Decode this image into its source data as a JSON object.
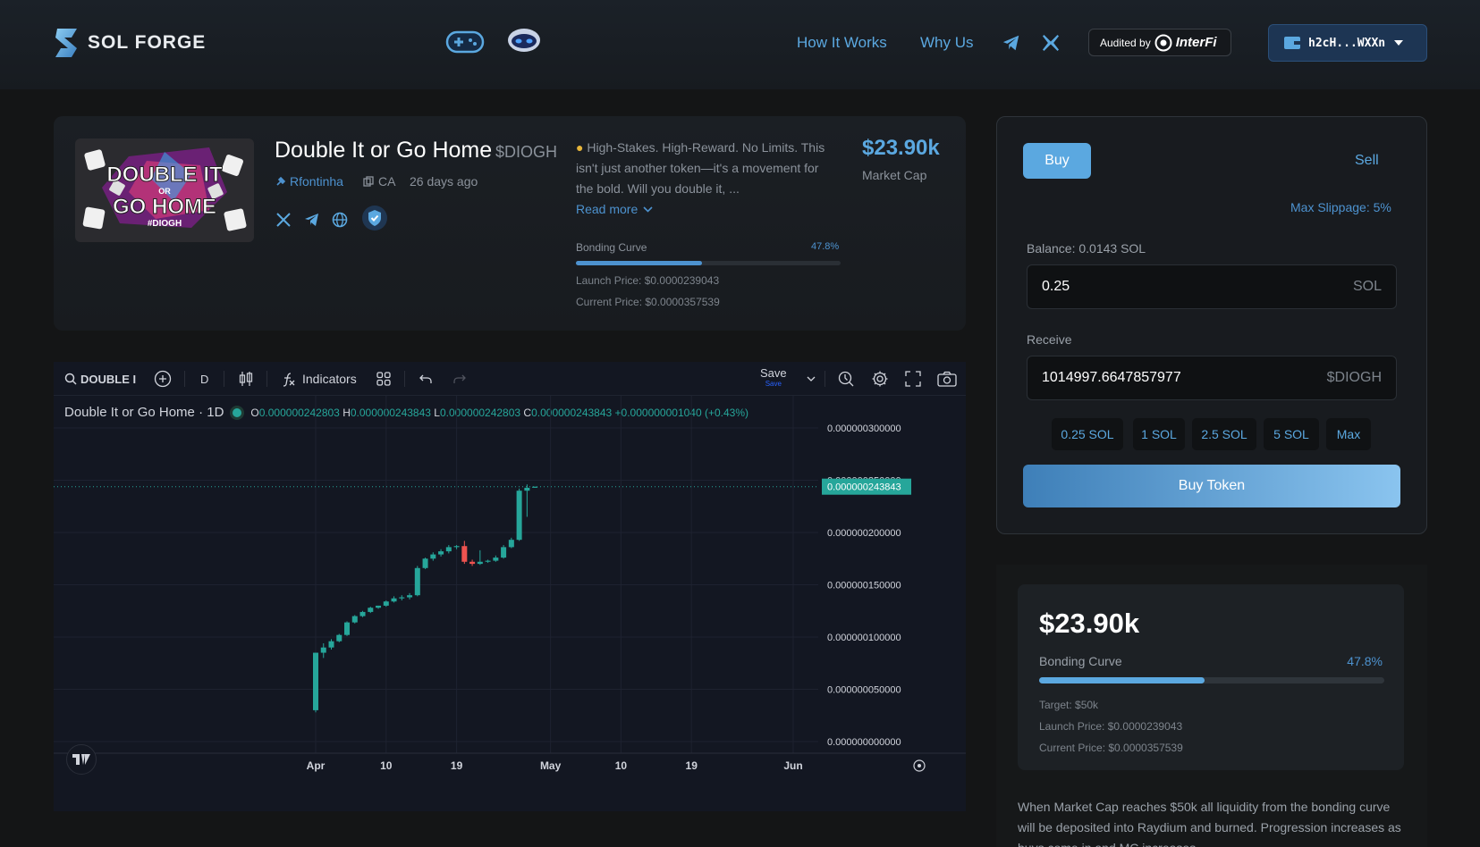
{
  "header": {
    "logo_text": "SOL FORGE",
    "nav": [
      "How It Works",
      "Why Us"
    ],
    "audit_prefix": "Audited by",
    "audit_brand": "InterFi",
    "wallet": "h2cH...WXXn"
  },
  "token": {
    "name": "Double It or Go Home",
    "ticker": "$DIOGH",
    "image_text": [
      "DOUBLE IT",
      "OR",
      "GO HOME",
      "#DIOGH"
    ],
    "creator": "Rfontinha",
    "ca_label": "CA",
    "age": "26 days ago",
    "description": "High-Stakes. High-Reward. No Limits. This isn't just another token—it's a movement for the bold. Will you double it, ...",
    "read_more": "Read more",
    "market_cap": "$23.90k",
    "market_cap_label": "Market Cap",
    "bonding_label": "Bonding Curve",
    "bonding_pct": "47.8%",
    "bonding_progress": 47.8,
    "launch_price": "Launch Price: $0.0000239043",
    "current_price": "Current Price: $0.0000357539"
  },
  "chart_toolbar": {
    "symbol": "DOUBLE I",
    "interval": "D",
    "indicators": "Indicators",
    "save": "Save",
    "save_sub": "Save"
  },
  "chart_data": {
    "type": "candlestick",
    "title": "Double It or Go Home · 1D",
    "ohlc_readout": {
      "o_label": "O",
      "o": "0.000000242803",
      "h_label": "H",
      "h": "0.000000243843",
      "l_label": "L",
      "l": "0.000000242803",
      "c_label": "C",
      "c": "0.000000243843",
      "change": "+0.000000001040 (+0.43%)"
    },
    "ylim": [
      0,
      3e-07
    ],
    "y_ticks": [
      "0.000000300000",
      "0.000000250000",
      "0.000000200000",
      "0.000000150000",
      "0.000000100000",
      "0.000000050000",
      "0.000000000000"
    ],
    "y_tick_values": [
      3e-07,
      2.5e-07,
      2e-07,
      1.5e-07,
      1e-07,
      5e-08,
      0
    ],
    "x_ticks": [
      "Apr",
      "10",
      "19",
      "May",
      "10",
      "19",
      "Jun"
    ],
    "x_tick_days": [
      0,
      9,
      18,
      30,
      39,
      48,
      61
    ],
    "last_price_label": "0.000000243843",
    "last_price": 2.43843e-07,
    "candles": [
      {
        "d": 0,
        "o": 3e-08,
        "h": 8.5e-08,
        "l": 2.8e-08,
        "c": 8.5e-08
      },
      {
        "d": 1,
        "o": 8.5e-08,
        "h": 9.4e-08,
        "l": 8e-08,
        "c": 9e-08
      },
      {
        "d": 2,
        "o": 9e-08,
        "h": 9.8e-08,
        "l": 8.8e-08,
        "c": 9.6e-08
      },
      {
        "d": 3,
        "o": 9.6e-08,
        "h": 1.03e-07,
        "l": 9.5e-08,
        "c": 1.02e-07
      },
      {
        "d": 4,
        "o": 1.02e-07,
        "h": 1.15e-07,
        "l": 1.01e-07,
        "c": 1.14e-07
      },
      {
        "d": 5,
        "o": 1.14e-07,
        "h": 1.21e-07,
        "l": 1.13e-07,
        "c": 1.2e-07
      },
      {
        "d": 6,
        "o": 1.2e-07,
        "h": 1.25e-07,
        "l": 1.19e-07,
        "c": 1.24e-07
      },
      {
        "d": 7,
        "o": 1.24e-07,
        "h": 1.29e-07,
        "l": 1.23e-07,
        "c": 1.28e-07
      },
      {
        "d": 8,
        "o": 1.28e-07,
        "h": 1.3e-07,
        "l": 1.27e-07,
        "c": 1.3e-07
      },
      {
        "d": 9,
        "o": 1.3e-07,
        "h": 1.35e-07,
        "l": 1.29e-07,
        "c": 1.34e-07
      },
      {
        "d": 10,
        "o": 1.34e-07,
        "h": 1.39e-07,
        "l": 1.33e-07,
        "c": 1.37e-07
      },
      {
        "d": 11,
        "o": 1.37e-07,
        "h": 1.4e-07,
        "l": 1.35e-07,
        "c": 1.38e-07
      },
      {
        "d": 12,
        "o": 1.38e-07,
        "h": 1.42e-07,
        "l": 1.36e-07,
        "c": 1.4e-07
      },
      {
        "d": 13,
        "o": 1.4e-07,
        "h": 1.68e-07,
        "l": 1.39e-07,
        "c": 1.66e-07
      },
      {
        "d": 14,
        "o": 1.66e-07,
        "h": 1.76e-07,
        "l": 1.65e-07,
        "c": 1.75e-07
      },
      {
        "d": 15,
        "o": 1.75e-07,
        "h": 1.81e-07,
        "l": 1.73e-07,
        "c": 1.79e-07
      },
      {
        "d": 16,
        "o": 1.79e-07,
        "h": 1.84e-07,
        "l": 1.77e-07,
        "c": 1.82e-07
      },
      {
        "d": 17,
        "o": 1.82e-07,
        "h": 1.88e-07,
        "l": 1.8e-07,
        "c": 1.86e-07
      },
      {
        "d": 18,
        "o": 1.86e-07,
        "h": 1.88e-07,
        "l": 1.84e-07,
        "c": 1.87e-07
      },
      {
        "d": 19,
        "o": 1.87e-07,
        "h": 1.92e-07,
        "l": 1.7e-07,
        "c": 1.72e-07
      },
      {
        "d": 20,
        "o": 1.72e-07,
        "h": 1.74e-07,
        "l": 1.68e-07,
        "c": 1.7e-07
      },
      {
        "d": 21,
        "o": 1.7e-07,
        "h": 1.83e-07,
        "l": 1.69e-07,
        "c": 1.72e-07
      },
      {
        "d": 22,
        "o": 1.72e-07,
        "h": 1.74e-07,
        "l": 1.71e-07,
        "c": 1.73e-07
      },
      {
        "d": 23,
        "o": 1.73e-07,
        "h": 1.78e-07,
        "l": 1.72e-07,
        "c": 1.76e-07
      },
      {
        "d": 24,
        "o": 1.76e-07,
        "h": 1.88e-07,
        "l": 1.75e-07,
        "c": 1.86e-07
      },
      {
        "d": 25,
        "o": 1.86e-07,
        "h": 1.95e-07,
        "l": 1.85e-07,
        "c": 1.93e-07
      },
      {
        "d": 26,
        "o": 1.93e-07,
        "h": 2.42e-07,
        "l": 1.92e-07,
        "c": 2.4e-07
      },
      {
        "d": 27,
        "o": 2.4e-07,
        "h": 2.46e-07,
        "l": 2.15e-07,
        "c": 2.428e-07
      },
      {
        "d": 28,
        "o": 2.42803e-07,
        "h": 2.43843e-07,
        "l": 2.42803e-07,
        "c": 2.43843e-07
      }
    ]
  },
  "trade": {
    "buy_tab": "Buy",
    "sell_tab": "Sell",
    "slippage": "Max Slippage: 5%",
    "balance": "Balance: 0.0143 SOL",
    "amount": "0.25",
    "amount_unit": "SOL",
    "receive_label": "Receive",
    "receive_value": "1014997.6647857977",
    "receive_unit": "$DIOGH",
    "quick": [
      "0.25 SOL",
      "1 SOL",
      "2.5 SOL",
      "5 SOL",
      "Max"
    ],
    "buy_button": "Buy Token"
  },
  "stats": {
    "market_cap": "$23.90k",
    "bonding_label": "Bonding Curve",
    "bonding_pct": "47.8%",
    "bonding_progress": 47.8,
    "target": "Target: $50k",
    "launch_price": "Launch Price: $0.0000239043",
    "current_price": "Current Price: $0.0000357539",
    "note": "When Market Cap reaches $50k all liquidity from the bonding curve will be deposited into Raydium and burned. Progression increases as buys come in and MC increases."
  },
  "colors": {
    "accent": "#5ba8e0",
    "up": "#26a69a",
    "down": "#ef5350"
  }
}
